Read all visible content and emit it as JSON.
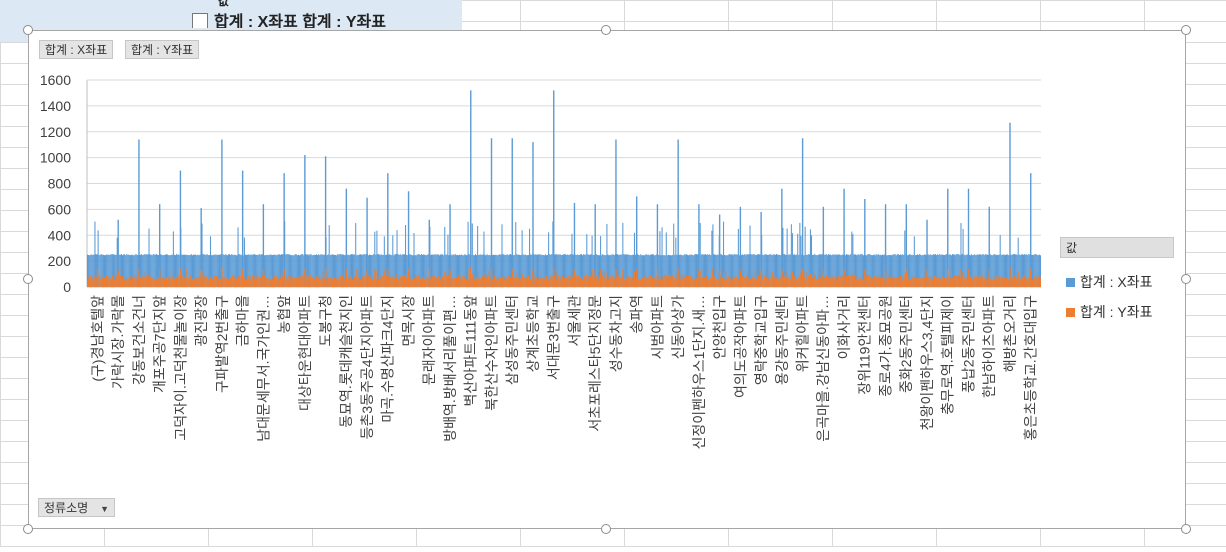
{
  "background_pane": {
    "values_label": "값",
    "series_row": "합계 : X좌표    합계 : Y좌표"
  },
  "field_buttons": {
    "series_x": "합계 : X좌표",
    "series_y": "합계 : Y좌표",
    "axis_field": "정류소명"
  },
  "colors": {
    "series_x": "#5b9bd5",
    "series_y": "#ed7d31",
    "gridline": "#d9d9d9"
  },
  "chart_data": {
    "type": "bar",
    "stacked": true,
    "ylim": [
      0,
      1600
    ],
    "yticks": [
      0,
      200,
      400,
      600,
      800,
      1000,
      1200,
      1400,
      1600
    ],
    "grid": true,
    "legend": "right",
    "legend_title": "값",
    "categories": [
      "(구)경남호텔앞",
      "가락시장.가락몰",
      "강동보건소건너",
      "개포주공7단지앞",
      "고덕자이.고덕천물놀이장",
      "광진광장",
      "구파발역2번출구",
      "금하마을",
      "남대문세무서.국가인권…",
      "농협앞",
      "대상타운현대아파트",
      "도봉구청",
      "동묘역.롯데캐슬천지인",
      "등촌3동주공4단지아파트",
      "마곡.수명산파크4단지",
      "면목시장",
      "문래자이아파트",
      "방배역.방배서리풀이편…",
      "벽산아파트111동앞",
      "북한산수자인아파트",
      "삼성동주민센터",
      "상계초등학교",
      "서대문3번출구",
      "서울세관",
      "서초포레스타5단지정문",
      "성수동차고지",
      "송파역",
      "시범아파트",
      "신동아상가",
      "신정이펜하우스1단지.새…",
      "안양천입구",
      "여의도공작아파트",
      "영락중학교입구",
      "용강동주민센터",
      "위커힐아파트",
      "은곡마을.강남신동아파…",
      "이화사거리",
      "장위119안전센터",
      "종로4가.종묘공원",
      "중화2동주민센터",
      "천왕이펜하우스3,4단지",
      "충무로역.호텔피제이",
      "풍납2동주민센터",
      "한남하이츠아파트",
      "해방촌오거리",
      "홍은초등학교.간호대입구"
    ],
    "series": [
      {
        "name": "합계 : X좌표",
        "values": [
          250,
          520,
          1140,
          640,
          900,
          610,
          1140,
          900,
          640,
          880,
          1020,
          1010,
          760,
          690,
          880,
          740,
          520,
          640,
          1520,
          1150,
          1150,
          1120,
          1520,
          650,
          640,
          1140,
          700,
          640,
          1140,
          640,
          560,
          620,
          580,
          760,
          1150,
          620,
          760,
          680,
          640,
          640,
          520,
          760,
          760,
          620,
          1270,
          880
        ]
      },
      {
        "name": "합계 : Y좌표",
        "values": [
          130,
          130,
          140,
          130,
          140,
          130,
          145,
          140,
          130,
          140,
          140,
          140,
          135,
          130,
          140,
          135,
          130,
          130,
          150,
          145,
          140,
          140,
          150,
          130,
          130,
          140,
          135,
          130,
          140,
          130,
          130,
          130,
          130,
          135,
          140,
          130,
          135,
          130,
          130,
          130,
          130,
          135,
          135,
          130,
          145,
          140
        ]
      }
    ],
    "detail_series": {
      "note_free": true,
      "approx_bar_count": 900,
      "typical_x_total": 250,
      "typical_y": 75
    }
  }
}
